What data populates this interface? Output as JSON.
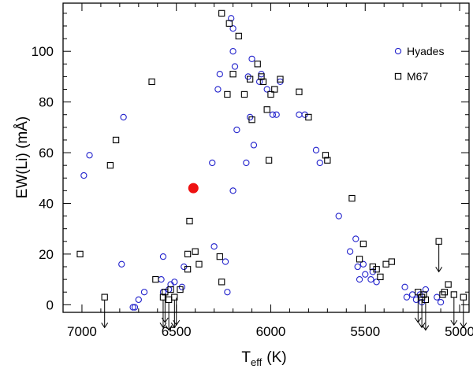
{
  "chart_data": {
    "type": "scatter",
    "xlabel": "T",
    "xlabel_sub": "eff",
    "xlabel_unit": "(K)",
    "ylabel": "EW(Li)  (mÅ)",
    "xlim": [
      7100,
      4950
    ],
    "ylim": [
      -3,
      119
    ],
    "x_reversed": true,
    "xticks": [
      7000,
      6500,
      6000,
      5500,
      5000
    ],
    "yticks": [
      0,
      20,
      40,
      60,
      80,
      100
    ],
    "legend_position": "top-right",
    "series": [
      {
        "name": "Hyades",
        "marker": "circle",
        "color": "#2222cc",
        "points": [
          [
            6990,
            51
          ],
          [
            6960,
            59
          ],
          [
            6780,
            74
          ],
          [
            6790,
            16
          ],
          [
            6730,
            -1
          ],
          [
            6720,
            -1
          ],
          [
            6700,
            2
          ],
          [
            6670,
            5
          ],
          [
            6570,
            19
          ],
          [
            6580,
            10
          ],
          [
            6570,
            5
          ],
          [
            6540,
            6
          ],
          [
            6530,
            8
          ],
          [
            6510,
            9
          ],
          [
            6470,
            7
          ],
          [
            6460,
            15
          ],
          [
            6310,
            56
          ],
          [
            6280,
            85
          ],
          [
            6270,
            91
          ],
          [
            6300,
            23
          ],
          [
            6240,
            17
          ],
          [
            6230,
            5
          ],
          [
            6210,
            113
          ],
          [
            6200,
            109
          ],
          [
            6200,
            100
          ],
          [
            6190,
            94
          ],
          [
            6200,
            45
          ],
          [
            6180,
            69
          ],
          [
            6130,
            56
          ],
          [
            6120,
            90
          ],
          [
            6110,
            74
          ],
          [
            6100,
            97
          ],
          [
            6090,
            63
          ],
          [
            6060,
            88
          ],
          [
            6050,
            91
          ],
          [
            6020,
            85
          ],
          [
            5990,
            75
          ],
          [
            5970,
            75
          ],
          [
            5950,
            88
          ],
          [
            5850,
            75
          ],
          [
            5820,
            75
          ],
          [
            5760,
            61
          ],
          [
            5740,
            56
          ],
          [
            5640,
            35
          ],
          [
            5580,
            21
          ],
          [
            5550,
            26
          ],
          [
            5540,
            15
          ],
          [
            5530,
            10
          ],
          [
            5510,
            16
          ],
          [
            5500,
            12
          ],
          [
            5470,
            10
          ],
          [
            5460,
            13
          ],
          [
            5440,
            9
          ],
          [
            5290,
            7
          ],
          [
            5280,
            3
          ],
          [
            5250,
            4
          ],
          [
            5230,
            2
          ],
          [
            5210,
            4
          ],
          [
            5200,
            1
          ],
          [
            5180,
            6
          ],
          [
            5120,
            3
          ],
          [
            5100,
            1
          ]
        ]
      },
      {
        "name": "M67",
        "marker": "square",
        "color": "#000000",
        "points": [
          [
            7010,
            20
          ],
          [
            6880,
            3
          ],
          [
            6850,
            55
          ],
          [
            6820,
            65
          ],
          [
            6630,
            88
          ],
          [
            6610,
            10
          ],
          [
            6570,
            3
          ],
          [
            6560,
            5
          ],
          [
            6540,
            2
          ],
          [
            6530,
            6
          ],
          [
            6510,
            3
          ],
          [
            6480,
            6
          ],
          [
            6440,
            20
          ],
          [
            6430,
            33
          ],
          [
            6440,
            14
          ],
          [
            6400,
            21
          ],
          [
            6380,
            16
          ],
          [
            6270,
            19
          ],
          [
            6260,
            9
          ],
          [
            6260,
            115
          ],
          [
            6230,
            83
          ],
          [
            6220,
            111
          ],
          [
            6200,
            91
          ],
          [
            6170,
            106
          ],
          [
            6140,
            83
          ],
          [
            6110,
            89
          ],
          [
            6100,
            73
          ],
          [
            6070,
            95
          ],
          [
            6050,
            90
          ],
          [
            6040,
            88
          ],
          [
            6020,
            77
          ],
          [
            6010,
            57
          ],
          [
            6000,
            83
          ],
          [
            5980,
            85
          ],
          [
            5950,
            89
          ],
          [
            5850,
            84
          ],
          [
            5800,
            74
          ],
          [
            5710,
            59
          ],
          [
            5700,
            57
          ],
          [
            5570,
            42
          ],
          [
            5530,
            18
          ],
          [
            5510,
            24
          ],
          [
            5460,
            15
          ],
          [
            5440,
            14
          ],
          [
            5420,
            11
          ],
          [
            5390,
            16
          ],
          [
            5360,
            17
          ],
          [
            5220,
            5
          ],
          [
            5200,
            3
          ],
          [
            5190,
            4
          ],
          [
            5180,
            2
          ],
          [
            5110,
            25
          ],
          [
            5090,
            4
          ],
          [
            5080,
            5
          ],
          [
            5060,
            8
          ],
          [
            5030,
            4
          ],
          [
            4980,
            3
          ]
        ]
      },
      {
        "name": "",
        "marker": "filled-circle",
        "color": "#ee1111",
        "points": [
          [
            6410,
            46
          ]
        ]
      }
    ],
    "upper_limits": [
      [
        6880,
        3
      ],
      [
        6570,
        3
      ],
      [
        6560,
        5
      ],
      [
        6540,
        2
      ],
      [
        6510,
        3
      ],
      [
        6500,
        4
      ],
      [
        5220,
        5
      ],
      [
        5200,
        3
      ],
      [
        5180,
        2
      ],
      [
        5110,
        25
      ],
      [
        5030,
        4
      ],
      [
        4980,
        3
      ]
    ]
  }
}
